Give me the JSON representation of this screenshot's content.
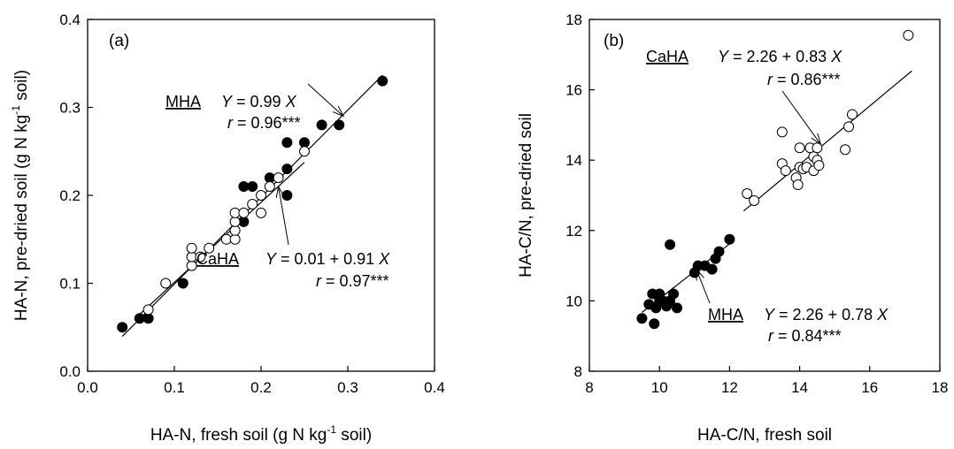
{
  "chart_data": [
    {
      "type": "scatter",
      "panel_label": "(a)",
      "xlabel": "HA-N, fresh soil (g N kg",
      "xlabel_sup": "-1",
      "xlabel_tail": " soil)",
      "ylabel": "HA-N, pre-dried soil (g N kg",
      "ylabel_sup": "-1",
      "ylabel_tail": " soil)",
      "xlim": [
        0.0,
        0.4
      ],
      "ylim": [
        0.0,
        0.4
      ],
      "xticks": [
        "0.0",
        "0.1",
        "0.2",
        "0.3",
        "0.4"
      ],
      "yticks": [
        "0.0",
        "0.1",
        "0.2",
        "0.3",
        "0.4"
      ],
      "series": [
        {
          "name": "MHA",
          "marker": "filled-circle",
          "points": [
            [
              0.04,
              0.05
            ],
            [
              0.06,
              0.06
            ],
            [
              0.07,
              0.06
            ],
            [
              0.11,
              0.1
            ],
            [
              0.18,
              0.17
            ],
            [
              0.18,
              0.21
            ],
            [
              0.19,
              0.21
            ],
            [
              0.21,
              0.22
            ],
            [
              0.23,
              0.23
            ],
            [
              0.23,
              0.26
            ],
            [
              0.23,
              0.2
            ],
            [
              0.25,
              0.26
            ],
            [
              0.27,
              0.28
            ],
            [
              0.29,
              0.28
            ],
            [
              0.34,
              0.33
            ]
          ],
          "fit": {
            "slope": 0.99,
            "intercept": 0.0,
            "x_range": [
              0.04,
              0.34
            ]
          }
        },
        {
          "name": "CaHA",
          "marker": "open-circle",
          "points": [
            [
              0.07,
              0.07
            ],
            [
              0.09,
              0.1
            ],
            [
              0.12,
              0.12
            ],
            [
              0.12,
              0.13
            ],
            [
              0.12,
              0.14
            ],
            [
              0.13,
              0.13
            ],
            [
              0.14,
              0.14
            ],
            [
              0.16,
              0.15
            ],
            [
              0.17,
              0.15
            ],
            [
              0.17,
              0.16
            ],
            [
              0.17,
              0.17
            ],
            [
              0.17,
              0.18
            ],
            [
              0.18,
              0.18
            ],
            [
              0.19,
              0.19
            ],
            [
              0.2,
              0.18
            ],
            [
              0.2,
              0.2
            ],
            [
              0.21,
              0.21
            ],
            [
              0.22,
              0.22
            ],
            [
              0.25,
              0.25
            ]
          ],
          "fit": {
            "slope": 0.91,
            "intercept": 0.01,
            "x_range": [
              0.06,
              0.25
            ]
          }
        }
      ],
      "annotations": [
        {
          "series": "MHA",
          "name_text": "MHA",
          "eq_var": "Y",
          "eq_text": " = 0.99 ",
          "eq_var2": "X",
          "r_var": "r",
          "r_text": " = 0.96***",
          "arrow_to": [
            0.295,
            0.29
          ]
        },
        {
          "series": "CaHA",
          "name_text": "CaHA",
          "eq_var": "Y",
          "eq_text": " = 0.01 + 0.91 ",
          "eq_var2": "X",
          "r_var": "r",
          "r_text": " = 0.97***",
          "arrow_to": [
            0.22,
            0.21
          ]
        }
      ]
    },
    {
      "type": "scatter",
      "panel_label": "(b)",
      "xlabel": "HA-C/N, fresh soil",
      "ylabel": "HA-C/N, pre-dried soil",
      "xlim": [
        8,
        18
      ],
      "ylim": [
        8,
        18
      ],
      "xticks": [
        "8",
        "10",
        "12",
        "14",
        "16",
        "18"
      ],
      "yticks": [
        "8",
        "10",
        "12",
        "14",
        "16",
        "18"
      ],
      "series": [
        {
          "name": "MHA",
          "marker": "filled-circle",
          "points": [
            [
              9.5,
              9.5
            ],
            [
              9.7,
              9.9
            ],
            [
              9.8,
              10.2
            ],
            [
              9.85,
              9.35
            ],
            [
              9.9,
              9.8
            ],
            [
              10.0,
              10.2
            ],
            [
              10.0,
              10.0
            ],
            [
              10.1,
              10.0
            ],
            [
              10.2,
              9.85
            ],
            [
              10.3,
              10.0
            ],
            [
              10.3,
              11.6
            ],
            [
              10.4,
              10.2
            ],
            [
              10.5,
              9.8
            ],
            [
              11.0,
              10.8
            ],
            [
              11.1,
              11.0
            ],
            [
              11.3,
              11.0
            ],
            [
              11.5,
              10.9
            ],
            [
              11.6,
              11.2
            ],
            [
              11.7,
              11.4
            ],
            [
              12.0,
              11.75
            ]
          ],
          "fit": {
            "slope": 0.78,
            "intercept": 2.26,
            "x_range": [
              9.5,
              12.0
            ]
          }
        },
        {
          "name": "CaHA",
          "marker": "open-circle",
          "points": [
            [
              12.5,
              13.05
            ],
            [
              12.7,
              12.85
            ],
            [
              13.5,
              14.8
            ],
            [
              13.5,
              13.9
            ],
            [
              13.6,
              13.7
            ],
            [
              13.9,
              13.5
            ],
            [
              13.95,
              13.3
            ],
            [
              14.0,
              13.8
            ],
            [
              14.0,
              14.35
            ],
            [
              14.1,
              13.75
            ],
            [
              14.2,
              13.8
            ],
            [
              14.3,
              14.35
            ],
            [
              14.4,
              14.1
            ],
            [
              14.4,
              13.7
            ],
            [
              14.5,
              14.35
            ],
            [
              14.5,
              14.0
            ],
            [
              14.55,
              13.85
            ],
            [
              15.3,
              14.3
            ],
            [
              15.4,
              14.95
            ],
            [
              15.5,
              15.3
            ],
            [
              17.1,
              17.55
            ]
          ],
          "fit": {
            "slope": 0.83,
            "intercept": 2.26,
            "x_range": [
              12.4,
              17.2
            ]
          }
        }
      ],
      "annotations": [
        {
          "series": "CaHA",
          "name_text": "CaHA",
          "eq_var": "Y",
          "eq_text": " = 2.26 + 0.83 ",
          "eq_var2": "X",
          "r_var": "r",
          "r_text": " = 0.86***",
          "arrow_to": [
            14.6,
            14.45
          ]
        },
        {
          "series": "MHA",
          "name_text": "MHA",
          "eq_var": "Y",
          "eq_text": " = 2.26 + 0.78 ",
          "eq_var2": "X",
          "r_var": "r",
          "r_text": " = 0.84***",
          "arrow_to": [
            11.05,
            10.9
          ]
        }
      ]
    }
  ]
}
